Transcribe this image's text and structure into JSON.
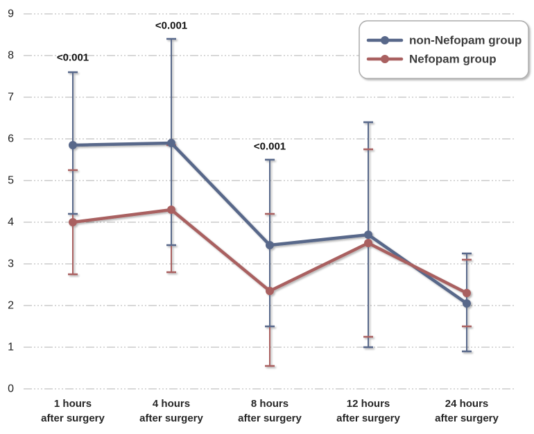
{
  "page": {
    "background": "#ffffff"
  },
  "chart_data": {
    "type": "line",
    "title": "",
    "xlabel": "",
    "ylabel": "",
    "categories": [
      "1 hours",
      "4 hours",
      "8 hours",
      "12 hours",
      "24 hours"
    ],
    "category_suffix": "after surgery",
    "ylim": [
      0,
      9
    ],
    "yticks": [
      0,
      1,
      2,
      3,
      4,
      5,
      6,
      7,
      8,
      9
    ],
    "grid": "horizontal-dashed",
    "gridline_color": "#b0b0b0",
    "legend_position": "top-right",
    "legend_text_color": "#3d3d3d",
    "series": [
      {
        "name": "non-Nefopam group",
        "color": "#58678a",
        "values": [
          5.85,
          5.9,
          3.45,
          3.7,
          2.05
        ],
        "err_high": [
          7.6,
          8.4,
          5.5,
          6.4,
          3.25
        ],
        "err_low": [
          4.2,
          3.45,
          1.5,
          1.0,
          0.9
        ]
      },
      {
        "name": "Nefopam group",
        "color": "#a96060",
        "values": [
          4.0,
          4.3,
          2.35,
          3.5,
          2.3
        ],
        "err_high": [
          5.25,
          5.85,
          4.2,
          5.75,
          3.1
        ],
        "err_low": [
          2.75,
          2.8,
          0.55,
          1.25,
          1.5
        ]
      }
    ],
    "annotations": [
      {
        "text": "<0.001",
        "category_index": 0,
        "y_value": 7.95
      },
      {
        "text": "<0.001",
        "category_index": 1,
        "y_value": 8.72
      },
      {
        "text": "<0.001",
        "category_index": 2,
        "y_value": 5.82
      }
    ]
  }
}
